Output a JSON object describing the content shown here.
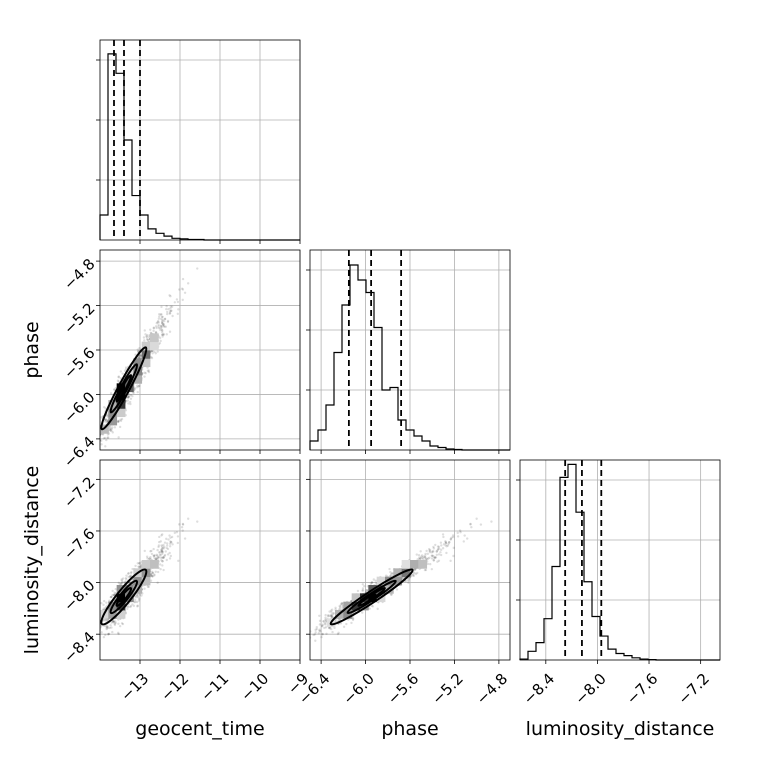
{
  "chart_data": {
    "type": "corner",
    "parameters": [
      "geocent_time",
      "phase",
      "luminosity_distance"
    ],
    "ranges": {
      "geocent_time": [
        -14.0,
        -9.0
      ],
      "phase": [
        -6.5,
        -4.7
      ],
      "luminosity_distance": [
        -8.6,
        -7.05
      ]
    },
    "ticks": {
      "geocent_time": [
        {
          "value": -13,
          "label": "−13"
        },
        {
          "value": -12,
          "label": "−12"
        },
        {
          "value": -11,
          "label": "−11"
        },
        {
          "value": -10,
          "label": "−10"
        },
        {
          "value": -9,
          "label": "−9"
        }
      ],
      "phase": [
        {
          "value": -6.4,
          "label": "−6.4"
        },
        {
          "value": -6.0,
          "label": "−6.0"
        },
        {
          "value": -5.6,
          "label": "−5.6"
        },
        {
          "value": -5.2,
          "label": "−5.2"
        },
        {
          "value": -4.8,
          "label": "−4.8"
        }
      ],
      "luminosity_distance": [
        {
          "value": -8.4,
          "label": "−8.4"
        },
        {
          "value": -8.0,
          "label": "−8.0"
        },
        {
          "value": -7.6,
          "label": "−7.6"
        },
        {
          "value": -7.2,
          "label": "−7.2"
        }
      ]
    },
    "quantiles": {
      "geocent_time": [
        -13.65,
        -13.4,
        -13.0
      ],
      "phase": [
        -6.15,
        -5.95,
        -5.68
      ],
      "luminosity_distance": [
        -8.25,
        -8.12,
        -7.97
      ]
    },
    "histograms": {
      "geocent_time": {
        "bins": [
          -14.0,
          -13.8,
          -13.6,
          -13.4,
          -13.2,
          -13.0,
          -12.8,
          -12.6,
          -12.4,
          -12.2,
          -12.0,
          -11.8,
          -11.6,
          -11.4,
          -11.2,
          -11.0,
          -10.8,
          -10.6,
          -10.4,
          -10.2,
          -10.0,
          -9.8,
          -9.6,
          -9.4,
          -9.2,
          -9.0
        ],
        "counts": [
          45,
          335,
          300,
          180,
          80,
          45,
          20,
          12,
          7,
          3,
          2,
          1,
          1,
          0,
          0,
          0,
          0,
          0,
          0,
          0,
          0,
          0,
          0,
          0,
          0
        ],
        "ylim": [
          0,
          360
        ]
      },
      "phase": {
        "bins": [
          -6.5,
          -6.428,
          -6.356,
          -6.284,
          -6.212,
          -6.14,
          -6.068,
          -5.996,
          -5.924,
          -5.852,
          -5.78,
          -5.708,
          -5.636,
          -5.564,
          -5.492,
          -5.42,
          -5.348,
          -5.276,
          -5.204,
          -5.132,
          -5.06,
          -4.988,
          -4.916,
          -4.844,
          -4.772,
          -4.7
        ],
        "counts": [
          18,
          40,
          90,
          195,
          290,
          370,
          340,
          315,
          245,
          120,
          125,
          60,
          40,
          28,
          18,
          8,
          5,
          2,
          1,
          0,
          0,
          0,
          0,
          0,
          0
        ],
        "ylim": [
          0,
          400
        ]
      },
      "luminosity_distance": {
        "bins": [
          -8.6,
          -8.538,
          -8.476,
          -8.414,
          -8.352,
          -8.29,
          -8.228,
          -8.166,
          -8.104,
          -8.042,
          -7.98,
          -7.918,
          -7.856,
          -7.794,
          -7.732,
          -7.67,
          -7.608,
          -7.546,
          -7.484,
          -7.422,
          -7.36,
          -7.298,
          -7.236,
          -7.174,
          -7.112,
          -7.05
        ],
        "counts": [
          2,
          20,
          40,
          95,
          215,
          420,
          450,
          340,
          180,
          100,
          55,
          25,
          15,
          10,
          5,
          2,
          1,
          0,
          0,
          0,
          0,
          0,
          0,
          0,
          0
        ],
        "ylim": [
          0,
          460
        ]
      }
    },
    "scatter": {
      "count": 1100,
      "correlated_pairs": [
        {
          "x": "geocent_time",
          "y": "phase"
        },
        {
          "x": "geocent_time",
          "y": "luminosity_distance"
        },
        {
          "x": "phase",
          "y": "luminosity_distance"
        }
      ]
    },
    "grid": true
  }
}
